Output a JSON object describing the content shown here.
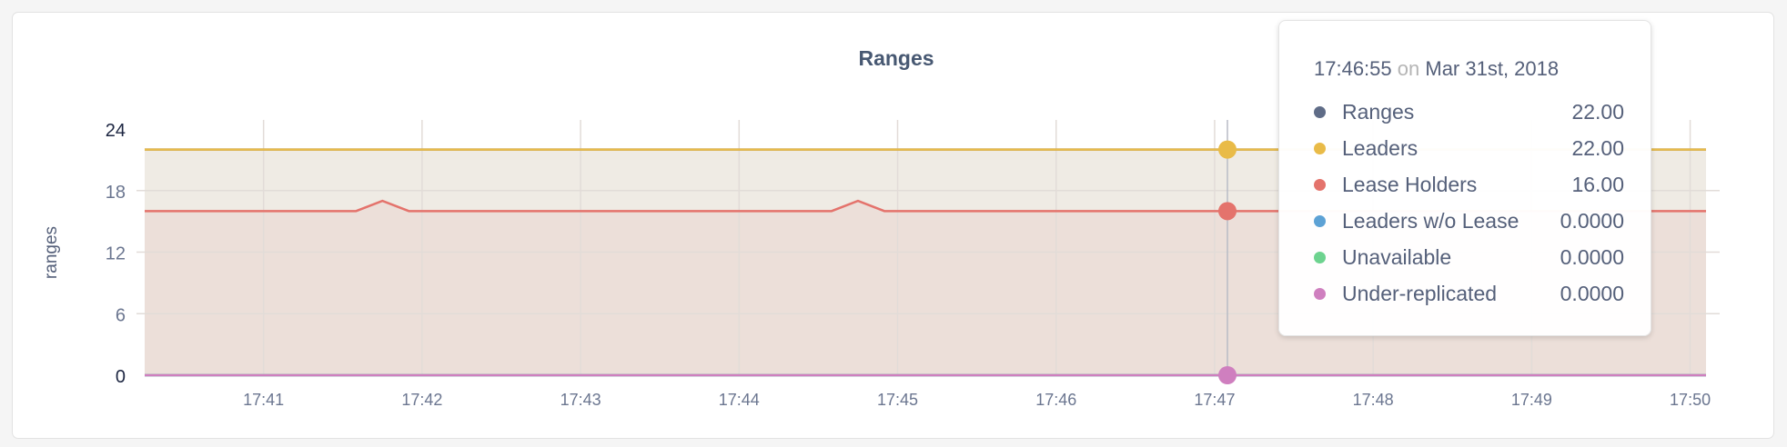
{
  "chart_data": {
    "type": "area",
    "title": "Ranges",
    "ylabel": "ranges",
    "xlabel": "",
    "ylim": [
      0,
      24
    ],
    "yticks": [
      "0",
      "6",
      "12",
      "18",
      "24"
    ],
    "xlim": [
      "17:40:15",
      "17:50:06"
    ],
    "xticks": [
      "17:41",
      "17:42",
      "17:43",
      "17:44",
      "17:45",
      "17:46",
      "17:47",
      "17:48",
      "17:49",
      "17:50"
    ],
    "grid": true,
    "series": [
      {
        "name": "Ranges",
        "color": "#5f6c87",
        "points": [
          [
            "17:40:15",
            22
          ],
          [
            "17:50:06",
            22
          ]
        ]
      },
      {
        "name": "Leaders",
        "color": "#e9bb48",
        "fill": "#efebe4",
        "points": [
          [
            "17:40:15",
            22
          ],
          [
            "17:50:06",
            22
          ]
        ]
      },
      {
        "name": "Lease Holders",
        "color": "#e4736c",
        "fill": "#ecdfd9",
        "points": [
          [
            "17:40:15",
            16
          ],
          [
            "17:41:35",
            16
          ],
          [
            "17:41:45",
            17
          ],
          [
            "17:41:55",
            16
          ],
          [
            "17:44:35",
            16
          ],
          [
            "17:44:45",
            17
          ],
          [
            "17:44:55",
            16
          ],
          [
            "17:50:06",
            16
          ]
        ]
      },
      {
        "name": "Leaders w/o Lease",
        "color": "#5da2d5",
        "points": [
          [
            "17:40:15",
            0
          ],
          [
            "17:50:06",
            0
          ]
        ]
      },
      {
        "name": "Unavailable",
        "color": "#6dd38f",
        "points": [
          [
            "17:40:15",
            0
          ],
          [
            "17:50:06",
            0
          ]
        ]
      },
      {
        "name": "Under-replicated",
        "color": "#cf7fbf",
        "points": [
          [
            "17:40:15",
            0
          ],
          [
            "17:50:06",
            0
          ]
        ]
      }
    ]
  },
  "tooltip": {
    "time": "17:46:55",
    "on": "on",
    "date": "Mar 31st, 2018",
    "rows": [
      {
        "label": "Ranges",
        "value": "22.00",
        "color": "#5f6c87"
      },
      {
        "label": "Leaders",
        "value": "22.00",
        "color": "#e9bb48"
      },
      {
        "label": "Lease Holders",
        "value": "16.00",
        "color": "#e4736c"
      },
      {
        "label": "Leaders w/o Lease",
        "value": "0.0000",
        "color": "#5da2d5"
      },
      {
        "label": "Unavailable",
        "value": "0.0000",
        "color": "#6dd38f"
      },
      {
        "label": "Under-replicated",
        "value": "0.0000",
        "color": "#cf7fbf"
      }
    ]
  }
}
